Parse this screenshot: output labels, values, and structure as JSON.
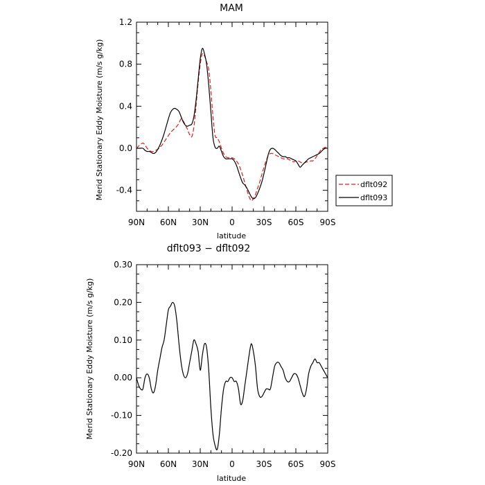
{
  "chart_data": [
    {
      "type": "line",
      "title": "MAM",
      "xlabel": "latitude",
      "ylabel": "Merid Stationary Eddy Moisture (m/s g/kg)",
      "x_tick_labels": [
        "90N",
        "60N",
        "30N",
        "0",
        "30S",
        "60S",
        "90S"
      ],
      "y_tick_labels": [
        "-0.4",
        "0.0",
        "0.4",
        "0.8",
        "1.2"
      ],
      "ylim": [
        -0.6,
        1.2
      ],
      "series": [
        {
          "name": "dflt092",
          "color": "#e41a1c",
          "dash": "dashed",
          "x": [
            90,
            87,
            84,
            82,
            80,
            78,
            76,
            74,
            72,
            70,
            68,
            66,
            64,
            62,
            60,
            58,
            56,
            54,
            52,
            50,
            48,
            46,
            44,
            42,
            40,
            38,
            36,
            34,
            32,
            30,
            28,
            26,
            24,
            22,
            20,
            18,
            16,
            14,
            12,
            10,
            8,
            6,
            4,
            2,
            0,
            -2,
            -4,
            -6,
            -8,
            -10,
            -12,
            -14,
            -16,
            -18,
            -20,
            -22,
            -24,
            -26,
            -28,
            -30,
            -32,
            -34,
            -36,
            -38,
            -40,
            -42,
            -44,
            -46,
            -48,
            -50,
            -52,
            -54,
            -56,
            -58,
            -60,
            -62,
            -64,
            -66,
            -68,
            -70,
            -72,
            -74,
            -76,
            -78,
            -80,
            -82,
            -84,
            -86,
            -88,
            -90
          ],
          "y": [
            0.0,
            0.03,
            0.05,
            0.03,
            0.0,
            -0.02,
            -0.03,
            -0.03,
            -0.02,
            -0.01,
            0.01,
            0.03,
            0.06,
            0.09,
            0.12,
            0.15,
            0.17,
            0.19,
            0.21,
            0.24,
            0.28,
            0.26,
            0.22,
            0.18,
            0.13,
            0.11,
            0.2,
            0.4,
            0.62,
            0.8,
            0.9,
            0.88,
            0.82,
            0.75,
            0.55,
            0.3,
            0.12,
            0.1,
            0.06,
            0.0,
            -0.05,
            -0.08,
            -0.09,
            -0.09,
            -0.09,
            -0.1,
            -0.12,
            -0.15,
            -0.2,
            -0.26,
            -0.33,
            -0.4,
            -0.46,
            -0.5,
            -0.48,
            -0.44,
            -0.38,
            -0.32,
            -0.25,
            -0.18,
            -0.12,
            -0.07,
            -0.05,
            -0.05,
            -0.06,
            -0.07,
            -0.08,
            -0.09,
            -0.1,
            -0.1,
            -0.1,
            -0.11,
            -0.12,
            -0.13,
            -0.12,
            -0.12,
            -0.13,
            -0.14,
            -0.14,
            -0.13,
            -0.13,
            -0.12,
            -0.12,
            -0.1,
            -0.07,
            -0.04,
            -0.01,
            0.0,
            0.01,
            0.0
          ]
        },
        {
          "name": "dflt093",
          "color": "#000000",
          "dash": "solid",
          "x": [
            90,
            87,
            84,
            82,
            80,
            78,
            76,
            74,
            72,
            70,
            68,
            66,
            64,
            62,
            60,
            58,
            56,
            54,
            52,
            50,
            48,
            46,
            44,
            42,
            40,
            38,
            36,
            34,
            32,
            30,
            28,
            26,
            24,
            22,
            20,
            18,
            16,
            14,
            12,
            10,
            8,
            6,
            4,
            2,
            0,
            -2,
            -4,
            -6,
            -8,
            -10,
            -12,
            -14,
            -16,
            -18,
            -20,
            -22,
            -24,
            -26,
            -28,
            -30,
            -32,
            -34,
            -36,
            -38,
            -40,
            -42,
            -44,
            -46,
            -48,
            -50,
            -52,
            -54,
            -56,
            -58,
            -60,
            -62,
            -64,
            -66,
            -68,
            -70,
            -72,
            -74,
            -76,
            -78,
            -80,
            -82,
            -84,
            -86,
            -88,
            -90
          ],
          "y": [
            0.0,
            0.0,
            0.0,
            -0.02,
            -0.03,
            -0.03,
            -0.04,
            -0.05,
            -0.04,
            -0.01,
            0.03,
            0.08,
            0.14,
            0.21,
            0.28,
            0.34,
            0.37,
            0.38,
            0.37,
            0.35,
            0.3,
            0.25,
            0.22,
            0.21,
            0.22,
            0.23,
            0.3,
            0.45,
            0.65,
            0.85,
            0.95,
            0.9,
            0.8,
            0.6,
            0.35,
            0.1,
            0.01,
            0.0,
            0.02,
            -0.03,
            -0.08,
            -0.1,
            -0.1,
            -0.1,
            -0.1,
            -0.12,
            -0.16,
            -0.22,
            -0.28,
            -0.33,
            -0.35,
            -0.38,
            -0.42,
            -0.46,
            -0.48,
            -0.47,
            -0.43,
            -0.38,
            -0.32,
            -0.24,
            -0.15,
            -0.06,
            -0.01,
            0.0,
            -0.01,
            -0.03,
            -0.05,
            -0.07,
            -0.08,
            -0.08,
            -0.09,
            -0.09,
            -0.1,
            -0.11,
            -0.12,
            -0.15,
            -0.18,
            -0.16,
            -0.14,
            -0.12,
            -0.1,
            -0.09,
            -0.08,
            -0.07,
            -0.06,
            -0.05,
            -0.03,
            -0.01,
            0.0,
            0.0
          ]
        }
      ],
      "legend": "right"
    },
    {
      "type": "line",
      "title": "dflt093 − dflt092",
      "xlabel": "latitude",
      "ylabel": "Merid Stationary Eddy Moisture (m/s g/kg)",
      "x_tick_labels": [
        "90N",
        "60N",
        "30N",
        "0",
        "30S",
        "60S",
        "90S"
      ],
      "y_tick_labels": [
        "-0.20",
        "-0.10",
        "0.00",
        "0.10",
        "0.20",
        "0.30"
      ],
      "ylim": [
        -0.2,
        0.3
      ],
      "series": [
        {
          "color": "#000000",
          "dash": "solid",
          "x": [
            90,
            88,
            86,
            84,
            82,
            80,
            78,
            76,
            74,
            72,
            70,
            68,
            66,
            64,
            62,
            60,
            58,
            56,
            54,
            52,
            50,
            48,
            46,
            44,
            42,
            40,
            38,
            36,
            34,
            32,
            30,
            28,
            26,
            24,
            22,
            20,
            18,
            16,
            14,
            12,
            10,
            8,
            6,
            4,
            2,
            0,
            -2,
            -4,
            -6,
            -8,
            -10,
            -12,
            -14,
            -16,
            -18,
            -20,
            -22,
            -24,
            -26,
            -28,
            -30,
            -32,
            -34,
            -36,
            -38,
            -40,
            -42,
            -44,
            -46,
            -48,
            -50,
            -52,
            -54,
            -56,
            -58,
            -60,
            -62,
            -64,
            -66,
            -68,
            -70,
            -72,
            -74,
            -76,
            -78,
            -80,
            -82,
            -84,
            -86,
            -88,
            -90
          ],
          "y": [
            0.0,
            -0.02,
            -0.03,
            -0.03,
            0.0,
            0.01,
            0.0,
            -0.03,
            -0.04,
            -0.02,
            0.02,
            0.05,
            0.08,
            0.1,
            0.14,
            0.18,
            0.19,
            0.2,
            0.19,
            0.15,
            0.09,
            0.04,
            0.01,
            0.0,
            0.01,
            0.04,
            0.07,
            0.1,
            0.09,
            0.07,
            0.02,
            0.06,
            0.09,
            0.08,
            0.02,
            -0.08,
            -0.15,
            -0.18,
            -0.19,
            -0.15,
            -0.08,
            -0.03,
            -0.01,
            -0.01,
            0.0,
            0.0,
            -0.01,
            -0.01,
            -0.03,
            -0.07,
            -0.06,
            -0.02,
            0.02,
            0.06,
            0.09,
            0.07,
            0.03,
            -0.03,
            -0.05,
            -0.05,
            -0.04,
            -0.03,
            -0.03,
            -0.03,
            0.0,
            0.03,
            0.04,
            0.04,
            0.03,
            0.02,
            0.0,
            -0.01,
            -0.01,
            0.0,
            0.01,
            0.01,
            0.0,
            -0.02,
            -0.04,
            -0.05,
            -0.03,
            0.01,
            0.03,
            0.04,
            0.05,
            0.04,
            0.04,
            0.03,
            0.02,
            0.01,
            0.0
          ]
        }
      ]
    }
  ]
}
